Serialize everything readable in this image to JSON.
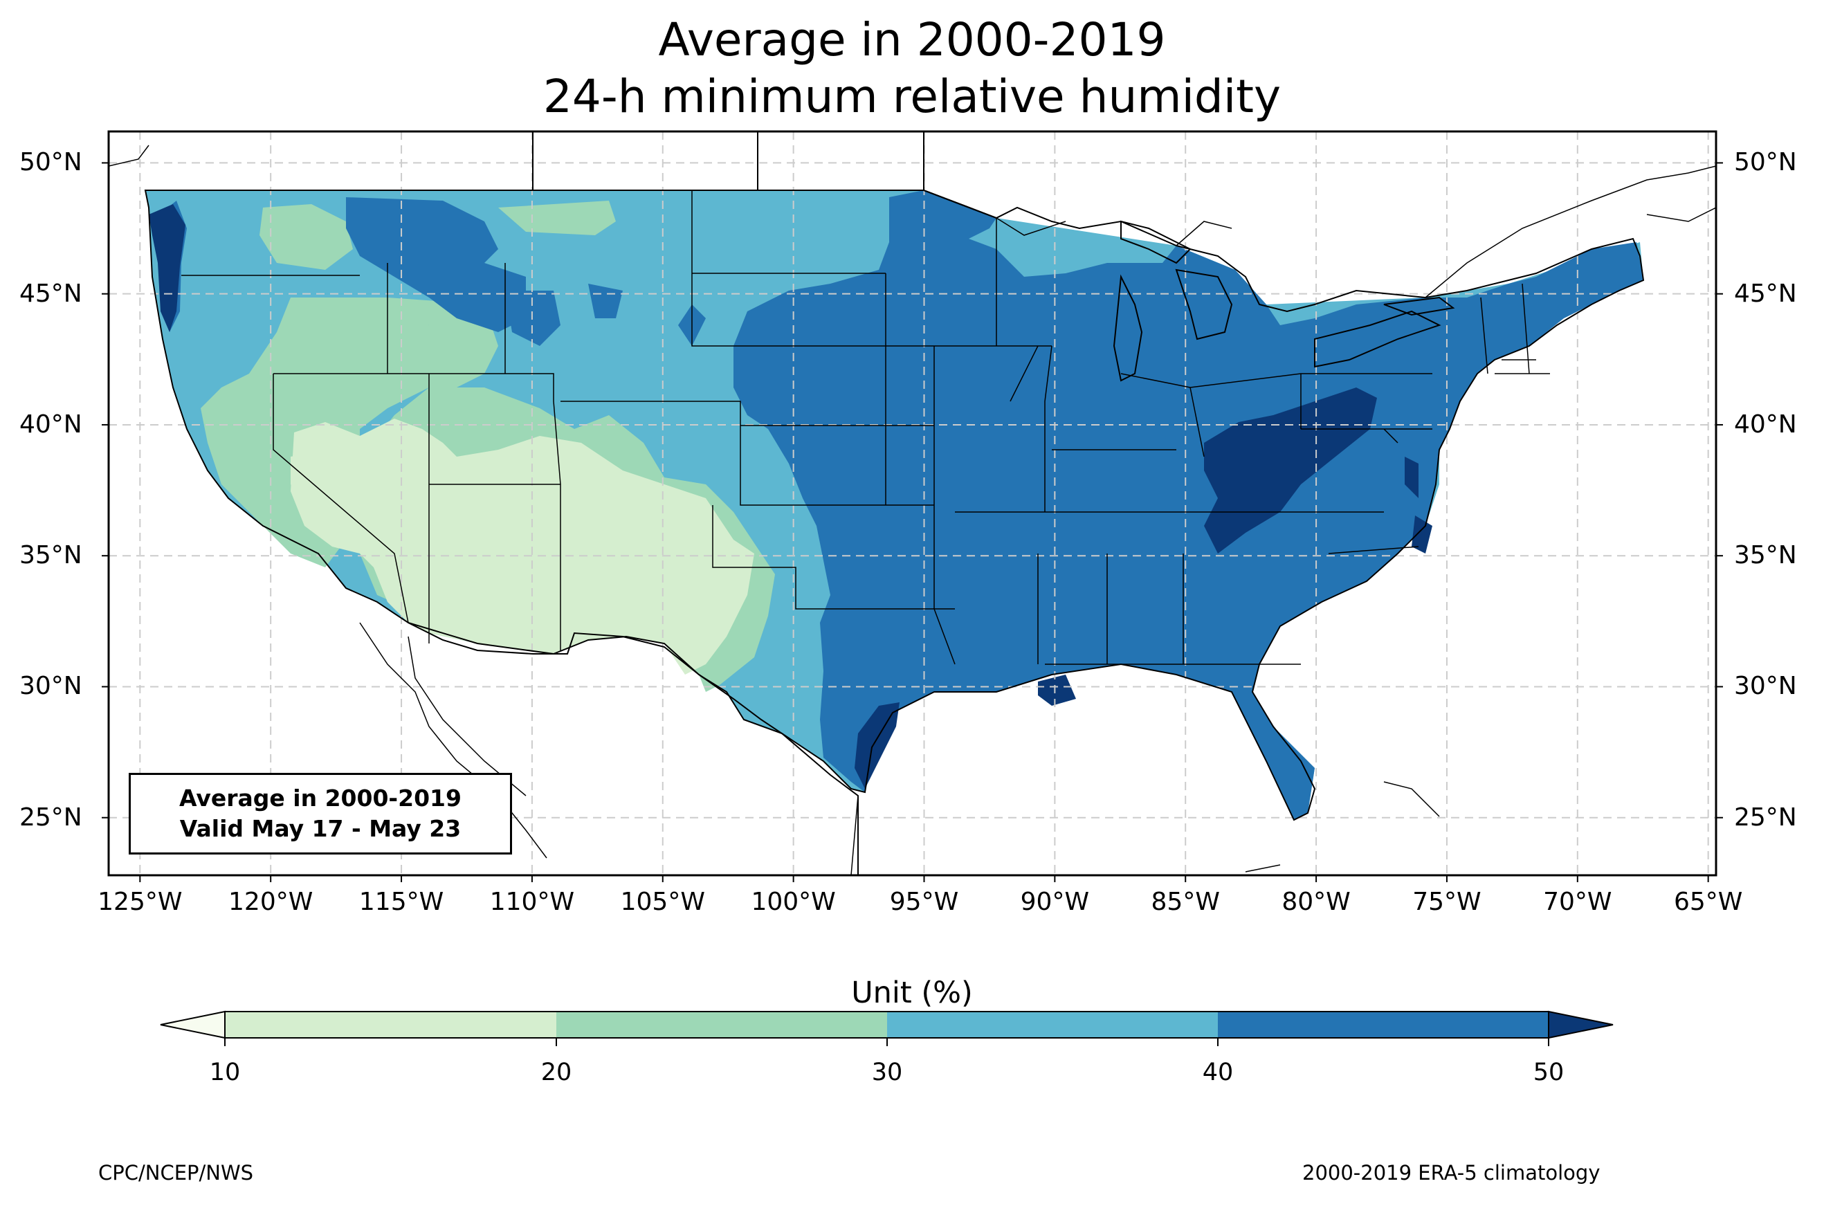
{
  "title": {
    "line1": "Average in 2000-2019",
    "line2": "24-h minimum relative humidity"
  },
  "map": {
    "extent": {
      "lon_min": -126.2,
      "lon_max": -64.7,
      "lat_min": 22.8,
      "lat_max": 51.2
    },
    "lat_ticks": [
      "50°N",
      "45°N",
      "40°N",
      "35°N",
      "30°N",
      "25°N"
    ],
    "lat_values": [
      50,
      45,
      40,
      35,
      30,
      25
    ],
    "lon_ticks": [
      "125°W",
      "120°W",
      "115°W",
      "110°W",
      "105°W",
      "100°W",
      "95°W",
      "90°W",
      "85°W",
      "80°W",
      "75°W",
      "70°W",
      "65°W"
    ],
    "lon_values": [
      -125,
      -120,
      -115,
      -110,
      -105,
      -100,
      -95,
      -90,
      -85,
      -80,
      -75,
      -70,
      -65
    ],
    "gridlines": true,
    "inset_text": {
      "line1": "Average in 2000-2019",
      "line2": "Valid May 17 - May 23"
    }
  },
  "colorbar": {
    "label": "Unit (%)",
    "ticks": [
      "10",
      "20",
      "30",
      "40",
      "50"
    ],
    "levels": [
      10,
      20,
      30,
      40,
      50
    ],
    "colors": {
      "below_10": "#f7fcf0",
      "10-20": "#d5eecf",
      "20-30": "#9dd8b6",
      "30-40": "#5db7d1",
      "40-50": "#2474b3",
      "above_50": "#0b3876"
    },
    "extend": "both"
  },
  "footer": {
    "left": "CPC/NCEP/NWS",
    "right": "2000-2019 ERA-5 climatology"
  }
}
